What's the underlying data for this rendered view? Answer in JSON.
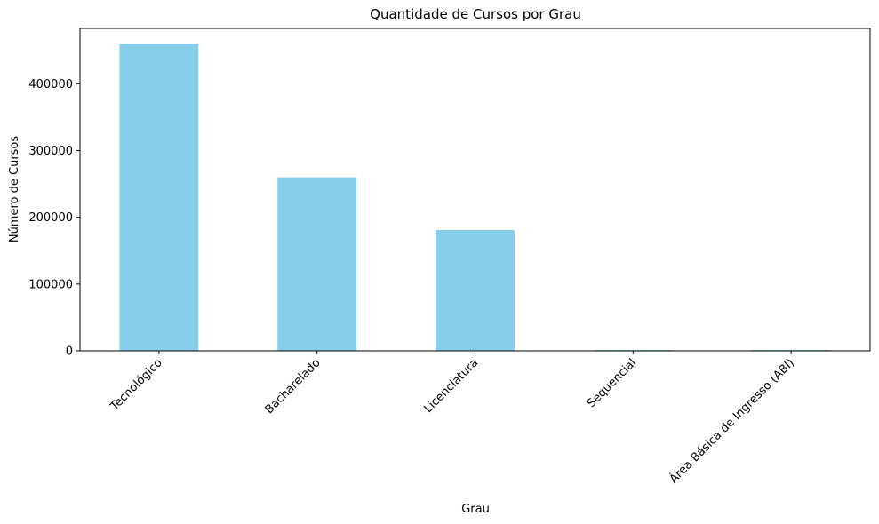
{
  "chart_data": {
    "type": "bar",
    "title": "Quantidade de Cursos por Grau",
    "xlabel": "Grau",
    "ylabel": "Número de Cursos",
    "categories": [
      "Tecnológico",
      "Bacharelado",
      "Licenciatura",
      "Sequencial",
      "Área Básica de Ingresso (ABI)"
    ],
    "values": [
      460000,
      260000,
      181000,
      1000,
      800
    ],
    "ylim": [
      0,
      483000
    ],
    "yticks": [
      0,
      100000,
      200000,
      300000,
      400000
    ],
    "ytick_labels": [
      "0",
      "100000",
      "200000",
      "300000",
      "400000"
    ],
    "bar_color": "#87ceeb",
    "grid": false,
    "legend": "none"
  }
}
